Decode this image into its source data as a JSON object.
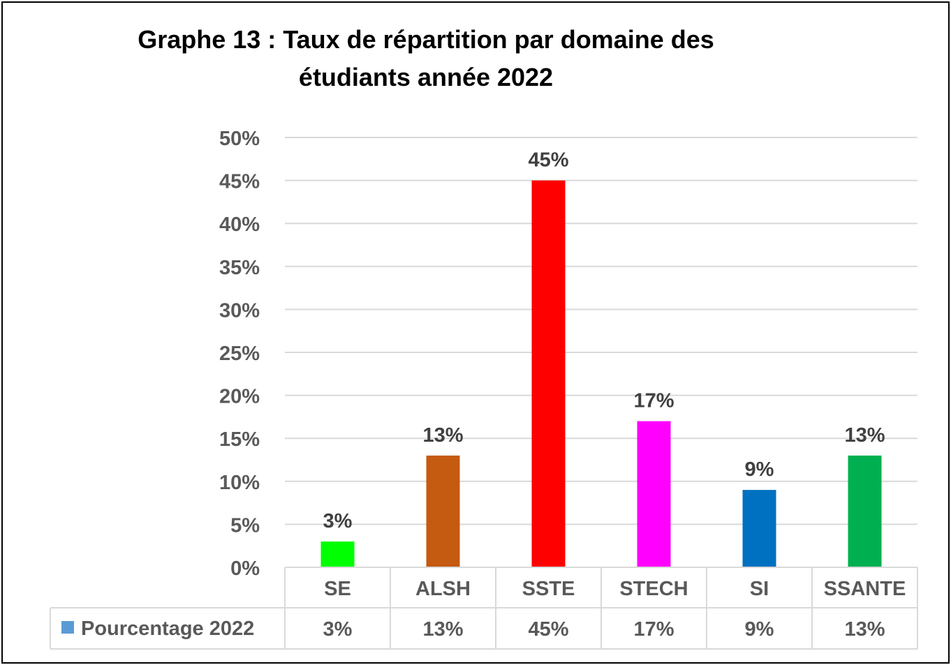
{
  "chart_data": {
    "type": "bar",
    "title_line1": "Graphe 13 : Taux de répartition par domaine des",
    "title_line2": "étudiants année 2022",
    "categories": [
      "SE",
      "ALSH",
      "SSTE",
      "STECH",
      "SI",
      "SSANTE"
    ],
    "series": [
      {
        "name": "Pourcentage 2022",
        "values": [
          3,
          13,
          45,
          17,
          9,
          13
        ],
        "labels": [
          "3%",
          "13%",
          "45%",
          "17%",
          "9%",
          "13%"
        ],
        "legend_color": "#5B9BD5"
      }
    ],
    "bar_colors": [
      "#00FF00",
      "#C55A11",
      "#FF0000",
      "#FF00FF",
      "#0070C0",
      "#00B050"
    ],
    "yaxis": {
      "ticks": [
        0,
        5,
        10,
        15,
        20,
        25,
        30,
        35,
        40,
        45,
        50
      ],
      "tick_labels": [
        "0%",
        "5%",
        "10%",
        "15%",
        "20%",
        "25%",
        "30%",
        "35%",
        "40%",
        "45%",
        "50%"
      ],
      "ylim": [
        0,
        50
      ]
    },
    "grid": true,
    "data_table": true,
    "xlabel": "",
    "ylabel": ""
  }
}
